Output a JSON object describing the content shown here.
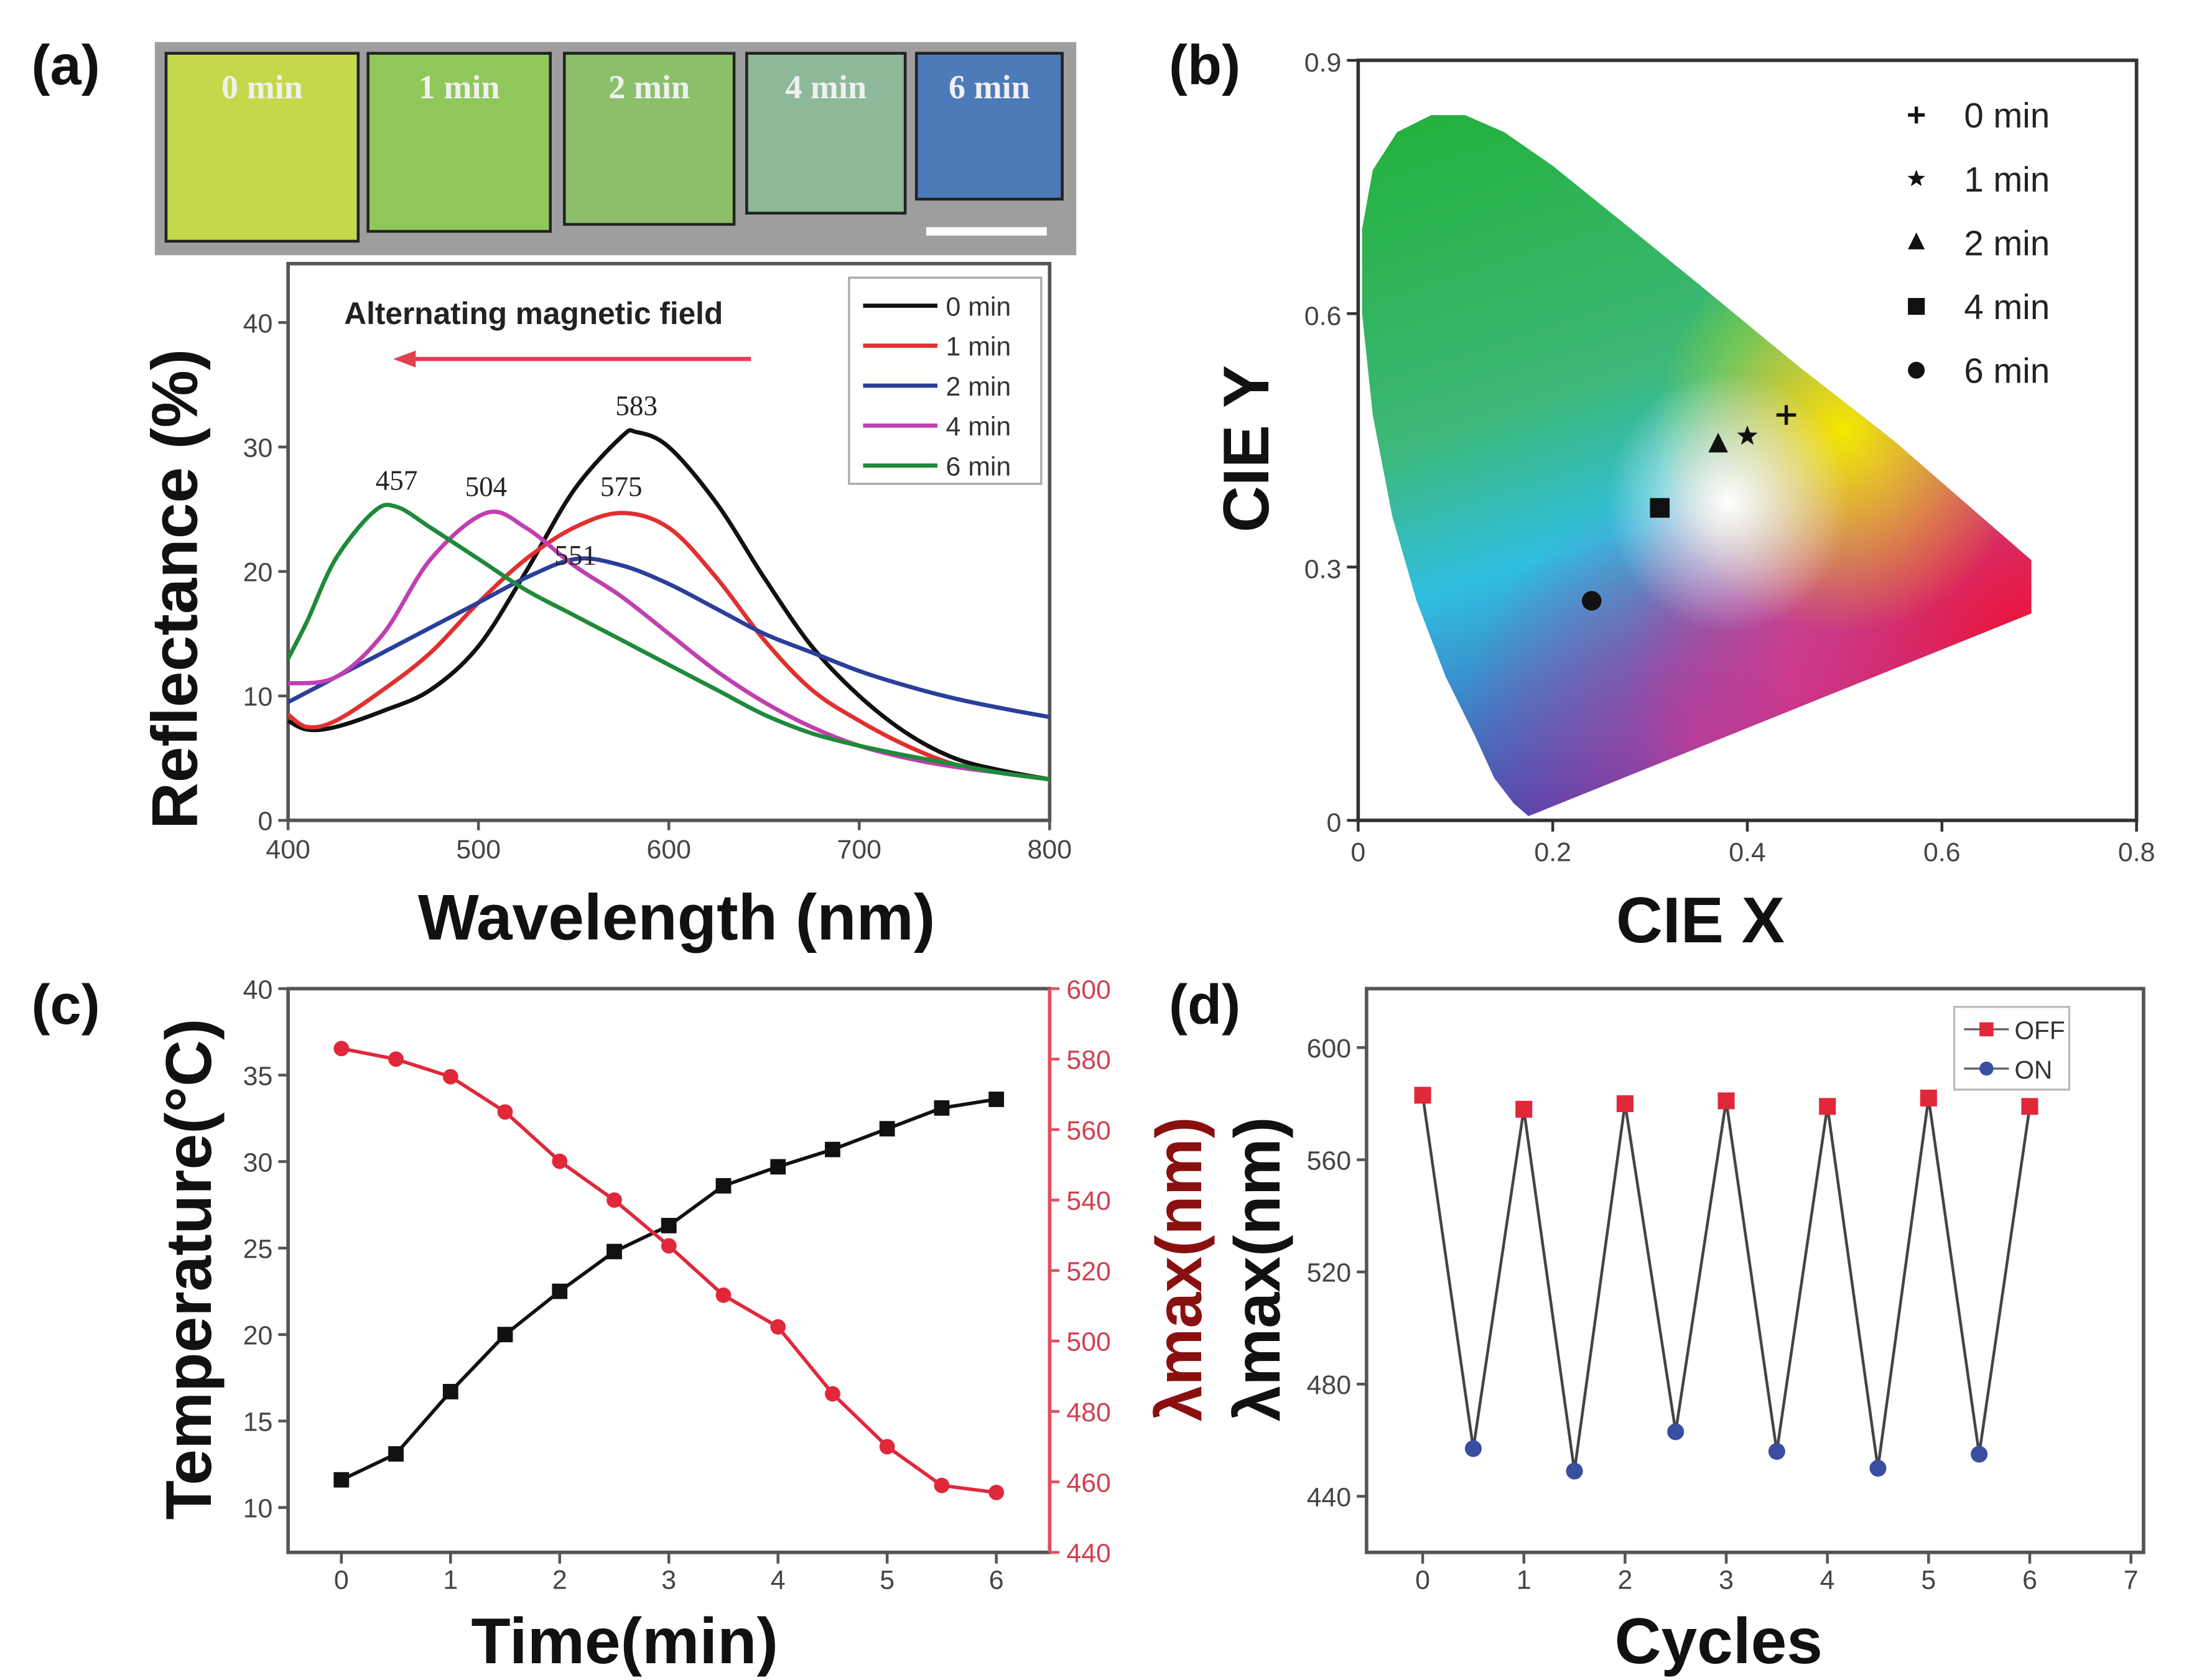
{
  "panel_labels": [
    "(a)",
    "(b)",
    "(c)",
    "(d)"
  ],
  "photos": {
    "labels": [
      "0 min",
      "1 min",
      "2 min",
      "4 min",
      "6 min"
    ],
    "colors": [
      "#c4d84a",
      "#8fc75a",
      "#8cbf6a",
      "#8db89a",
      "#4d7ab8"
    ]
  },
  "chart_data": [
    {
      "type": "line",
      "panel": "a",
      "xlabel": "Wavelength (nm)",
      "ylabel": "Reflectance (%)",
      "xlim": [
        400,
        800
      ],
      "ylim": [
        0,
        44
      ],
      "xticks": [
        "400",
        "500",
        "600",
        "700",
        "800"
      ],
      "yticks": [
        "0",
        "10",
        "20",
        "30",
        "40"
      ],
      "annotation": "Alternating magnetic field",
      "peak_labels": [
        {
          "text": "583",
          "x": 583,
          "y": 31.2
        },
        {
          "text": "575",
          "x": 575,
          "y": 24.7
        },
        {
          "text": "551",
          "x": 551,
          "y": 21
        },
        {
          "text": "504",
          "x": 504,
          "y": 24.7
        },
        {
          "text": "457",
          "x": 457,
          "y": 25.2
        }
      ],
      "legend_position": "top-right",
      "series": [
        {
          "name": "0 min",
          "color": "#111111",
          "x": [
            400,
            410,
            425,
            450,
            475,
            500,
            525,
            550,
            575,
            583,
            600,
            625,
            650,
            675,
            700,
            725,
            750,
            775,
            800
          ],
          "y": [
            8,
            7.3,
            7.5,
            8.8,
            10.5,
            14,
            20,
            26.5,
            30.8,
            31.2,
            30,
            25.5,
            19.5,
            14,
            10,
            7,
            5,
            4,
            3.3
          ]
        },
        {
          "name": "1 min",
          "color": "#e03030",
          "x": [
            400,
            410,
            425,
            450,
            475,
            500,
            525,
            550,
            575,
            600,
            625,
            650,
            675,
            700,
            725,
            750,
            775,
            800
          ],
          "y": [
            8.5,
            7.5,
            8,
            10.5,
            13.5,
            17.5,
            21,
            23.5,
            24.7,
            23.5,
            19.5,
            14.5,
            10.5,
            8,
            6,
            4.5,
            3.8,
            3.3
          ]
        },
        {
          "name": "2 min",
          "color": "#2a3f9a",
          "x": [
            400,
            425,
            450,
            475,
            500,
            525,
            551,
            575,
            600,
            625,
            650,
            675,
            700,
            725,
            750,
            775,
            800
          ],
          "y": [
            9.5,
            11.5,
            13.5,
            15.5,
            17.5,
            19.5,
            21,
            20.5,
            19,
            17,
            15,
            13.5,
            12,
            10.8,
            9.8,
            9,
            8.3
          ]
        },
        {
          "name": "4 min",
          "color": "#c040b0",
          "x": [
            400,
            425,
            450,
            475,
            504,
            525,
            550,
            575,
            600,
            625,
            650,
            675,
            700,
            725,
            750,
            775,
            800
          ],
          "y": [
            11,
            11.5,
            15,
            21,
            24.7,
            23.5,
            20.5,
            18,
            15,
            12,
            9.5,
            7.5,
            6,
            5,
            4.3,
            3.8,
            3.3
          ]
        },
        {
          "name": "6 min",
          "color": "#1f8a3a",
          "x": [
            400,
            410,
            425,
            445,
            457,
            475,
            500,
            525,
            550,
            575,
            600,
            625,
            650,
            675,
            700,
            725,
            750,
            775,
            800
          ],
          "y": [
            13,
            16,
            21,
            24.8,
            25.2,
            23.5,
            21,
            18.5,
            16.5,
            14.5,
            12.5,
            10.5,
            8.5,
            7,
            6,
            5.2,
            4.5,
            3.8,
            3.3
          ]
        }
      ]
    },
    {
      "type": "scatter",
      "panel": "b",
      "xlabel": "CIE X",
      "ylabel": "CIE Y",
      "xlim": [
        0,
        0.8
      ],
      "ylim": [
        0,
        0.9
      ],
      "xticks": [
        "0",
        "0.2",
        "0.4",
        "0.6",
        "0.8"
      ],
      "yticks": [
        "0",
        "0.3",
        "0.6",
        "0.9"
      ],
      "legend_position": "top-right",
      "series": [
        {
          "name": "0 min",
          "marker": "plus",
          "x": 0.44,
          "y": 0.48
        },
        {
          "name": "1 min",
          "marker": "star",
          "x": 0.4,
          "y": 0.455
        },
        {
          "name": "2 min",
          "marker": "triangle",
          "x": 0.37,
          "y": 0.445
        },
        {
          "name": "4 min",
          "marker": "square",
          "x": 0.31,
          "y": 0.37
        },
        {
          "name": "6 min",
          "marker": "circle",
          "x": 0.24,
          "y": 0.26
        }
      ]
    },
    {
      "type": "line",
      "panel": "c",
      "xlabel": "Time(min)",
      "ylabel": "Temperature(°C)",
      "ylabel_right": "λmax(nm)",
      "xlim": [
        -0.5,
        6.5
      ],
      "ylim": [
        7.4,
        40
      ],
      "ylim_right": [
        440,
        600
      ],
      "xticks": [
        "0",
        "1",
        "2",
        "3",
        "4",
        "5",
        "6"
      ],
      "yticks": [
        "10",
        "15",
        "20",
        "25",
        "30",
        "35",
        "40"
      ],
      "yticks_right": [
        "440",
        "460",
        "480",
        "500",
        "520",
        "540",
        "560",
        "580",
        "600"
      ],
      "x": [
        0,
        0.5,
        1,
        1.5,
        2,
        2.5,
        3,
        3.5,
        4,
        4.5,
        5,
        5.5,
        6
      ],
      "series": [
        {
          "name": "Temperature",
          "axis": "left",
          "color": "#111111",
          "marker": "square",
          "y": [
            11.6,
            13.1,
            16.7,
            20,
            22.5,
            24.8,
            26.3,
            28.6,
            29.7,
            30.7,
            31.9,
            33.1,
            33.6
          ]
        },
        {
          "name": "λmax",
          "axis": "right",
          "color": "#e0283a",
          "marker": "circle",
          "y": [
            583,
            580,
            575,
            565,
            551,
            540,
            527,
            513,
            504,
            485,
            470,
            459,
            457
          ]
        }
      ]
    },
    {
      "type": "line",
      "panel": "d",
      "xlabel": "Cycles",
      "ylabel": "λmax(nm)",
      "xlim": [
        -0.55,
        7
      ],
      "ylim": [
        420,
        621
      ],
      "xticks": [
        "0",
        "1",
        "2",
        "3",
        "4",
        "5",
        "6",
        "7"
      ],
      "yticks": [
        "440",
        "480",
        "520",
        "560",
        "600"
      ],
      "legend_position": "top-right",
      "series": [
        {
          "name": "OFF",
          "color": "#e0283a",
          "marker": "square",
          "x": [
            0,
            1,
            2,
            3,
            4,
            5,
            6
          ],
          "y": [
            583,
            578,
            580,
            581,
            579,
            582,
            579
          ]
        },
        {
          "name": "ON",
          "color": "#3a4ea0",
          "marker": "circle",
          "x": [
            0.5,
            1.5,
            2.5,
            3.5,
            4.5,
            5.5
          ],
          "y": [
            457,
            449,
            463,
            456,
            450,
            455
          ]
        }
      ]
    }
  ]
}
